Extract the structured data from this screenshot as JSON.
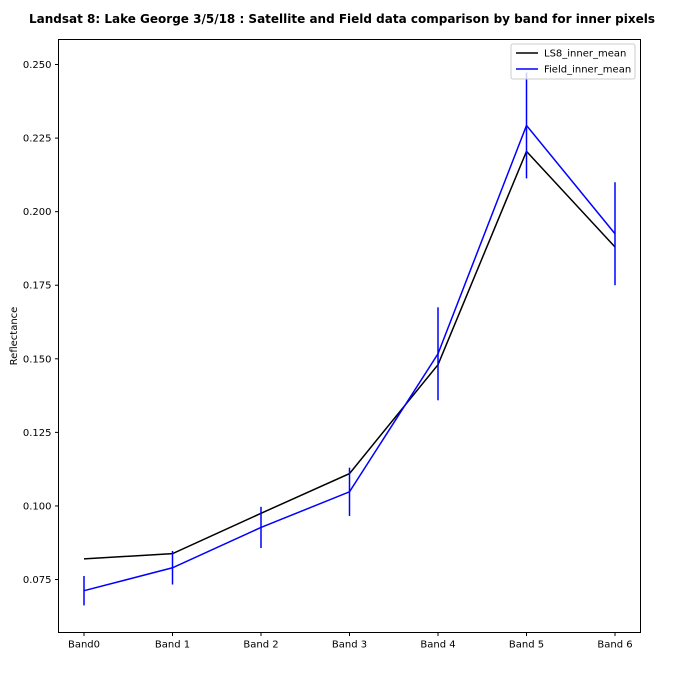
{
  "chart_data": {
    "type": "line",
    "title": "Landsat 8: Lake George 3/5/18 : Satellite and Field data comparison by band for inner pixels",
    "xlabel": "",
    "ylabel": "Reflectance",
    "categories": [
      "Band0",
      "Band 1",
      "Band 2",
      "Band 3",
      "Band 4",
      "Band 5",
      "Band 6"
    ],
    "yticks": [
      "0.075",
      "0.100",
      "0.125",
      "0.150",
      "0.175",
      "0.200",
      "0.225",
      "0.250"
    ],
    "ylim": [
      0.057,
      0.2585
    ],
    "grid": false,
    "legend_position": "top-right",
    "series": [
      {
        "name": "LS8_inner_mean",
        "color": "#000000",
        "values": [
          0.082,
          0.0838,
          0.0975,
          0.111,
          0.148,
          0.2205,
          0.188
        ]
      },
      {
        "name": "Field_inner_mean",
        "color": "#0000ff",
        "values": [
          0.0712,
          0.079,
          0.0927,
          0.1048,
          0.1517,
          0.2293,
          0.1925
        ],
        "error": [
          0.005,
          0.0057,
          0.007,
          0.0082,
          0.0158,
          0.018,
          0.0175
        ]
      }
    ]
  }
}
